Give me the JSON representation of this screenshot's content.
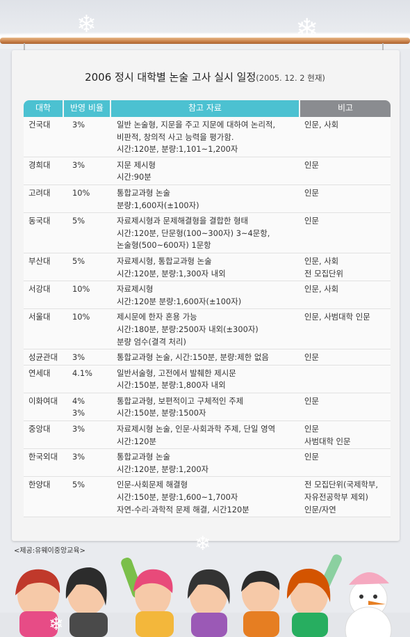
{
  "title": {
    "main": "2006 정시 대학별 논술 고사 실시 일정",
    "sub": "(2005. 12. 2 현재)"
  },
  "headers": {
    "university": "대학",
    "ratio": "반영 비율",
    "reference": "참고 자료",
    "note": "비고"
  },
  "rows": [
    {
      "university": "건국대",
      "ratio": [
        "3%"
      ],
      "reference": [
        "일반 논술형, 지문을 주고 지문에 대하여 논리적,",
        "비판적, 창의적 사고 능력을 평가함.",
        "시간:120분, 분량:1,101~1,200자"
      ],
      "note": [
        "인문, 사회"
      ]
    },
    {
      "university": "경희대",
      "ratio": [
        "3%"
      ],
      "reference": [
        "지문 제시형",
        "시간:90분"
      ],
      "note": [
        "인문"
      ]
    },
    {
      "university": "고려대",
      "ratio": [
        "10%"
      ],
      "reference": [
        "통합교과형 논술",
        "분량:1,600자(±100자)"
      ],
      "note": [
        "인문"
      ]
    },
    {
      "university": "동국대",
      "ratio": [
        "5%"
      ],
      "reference": [
        "자료제시형과 문제해결형을 결합한 형태",
        "시간:120분, 단문형(100~300자) 3~4문항,",
        "논술형(500~600자) 1문항"
      ],
      "note": [
        "인문"
      ]
    },
    {
      "university": "부산대",
      "ratio": [
        "5%"
      ],
      "reference": [
        "자료제시형, 통합교과형 논술",
        "시간:120분, 분량:1,300자 내외"
      ],
      "note": [
        "인문, 사회",
        "전 모집단위"
      ]
    },
    {
      "university": "서강대",
      "ratio": [
        "10%"
      ],
      "reference": [
        "자료제시형",
        "시간:120분 분량:1,600자(±100자)"
      ],
      "note": [
        "인문, 사회"
      ]
    },
    {
      "university": "서울대",
      "ratio": [
        "10%"
      ],
      "reference": [
        "제시문에 한자 혼용 가능",
        "시간:180분, 분량:2500자 내외(±300자)",
        "분량 엄수(결격 처리)"
      ],
      "note": [
        "인문, 사범대학 인문"
      ]
    },
    {
      "university": "성균관대",
      "ratio": [
        "3%"
      ],
      "reference": [
        "통합교과형 논술, 시간:150분, 분량:제한 없음"
      ],
      "note": [
        "인문"
      ]
    },
    {
      "university": "연세대",
      "ratio": [
        "4.1%"
      ],
      "reference": [
        "일반서술형, 고전에서 발췌한 제시문",
        "시간:150분, 분량:1,800자 내외"
      ],
      "note": [
        ""
      ]
    },
    {
      "university": "이화여대",
      "ratio": [
        "4%",
        "3%"
      ],
      "reference": [
        "통합교과형, 보편적이고 구체적인 주제",
        "시간:150분, 분량:1500자"
      ],
      "note": [
        "인문"
      ]
    },
    {
      "university": "중앙대",
      "ratio": [
        "3%"
      ],
      "reference": [
        "자료제시형 논술, 인문·사회과학 주제, 단일 영역",
        "시간:120분"
      ],
      "note": [
        "인문",
        "사범대학 인문"
      ]
    },
    {
      "university": "한국외대",
      "ratio": [
        "3%"
      ],
      "reference": [
        "통합교과형 논술",
        "시간:120분, 분량:1,200자"
      ],
      "note": [
        "인문"
      ]
    },
    {
      "university": "한양대",
      "ratio": [
        "5%"
      ],
      "reference": [
        "인문-사회문제 해결형",
        "시간:150분, 분량:1,600~1,700자",
        "자연-수리·과학적 문제 해결, 시간120분"
      ],
      "note": [
        "전 모집단위(국제학부,",
        "자유전공학부 제외)",
        "인문/자연"
      ]
    }
  ],
  "credit": "<제공:유웨이중앙교육>",
  "colors": {
    "header_accent": "#4cc1d1",
    "header_note": "#8a8c90",
    "rod": "#c9814a"
  }
}
